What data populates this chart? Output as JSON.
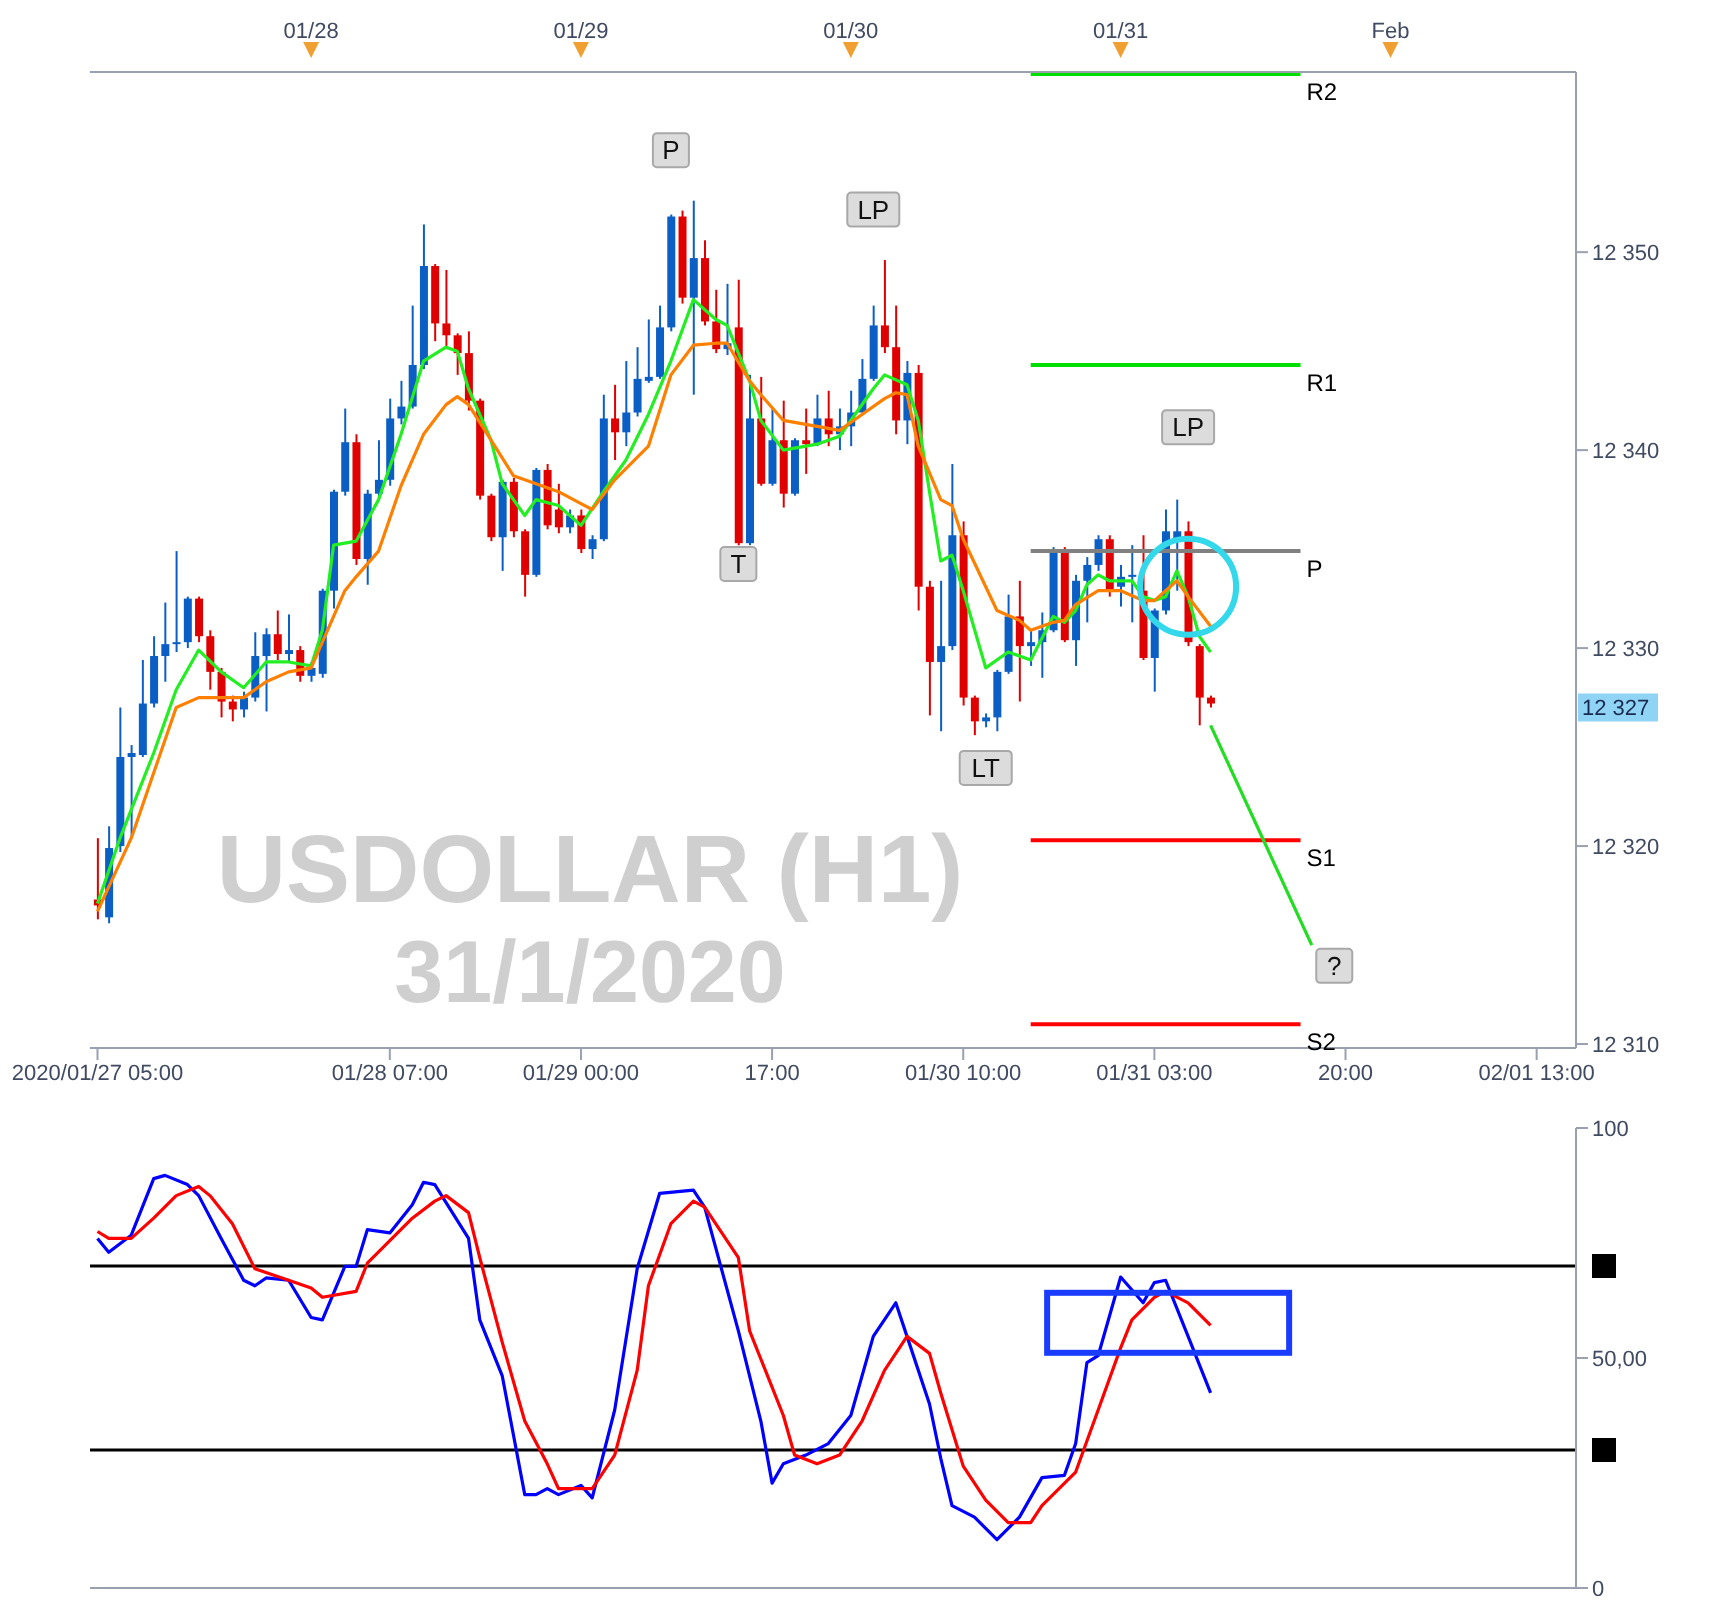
{
  "chart_data": [
    {
      "type": "candlestick",
      "title": "USDOLLAR (H1)",
      "subtitle": "31/1/2020",
      "x": [
        "2020-01-27T05:00",
        "2020-01-27T06:00",
        "2020-01-27T07:00",
        "2020-01-27T08:00",
        "2020-01-27T09:00",
        "2020-01-27T10:00",
        "2020-01-27T11:00",
        "2020-01-27T12:00",
        "2020-01-27T13:00",
        "2020-01-27T14:00",
        "2020-01-27T15:00",
        "2020-01-27T16:00",
        "2020-01-27T17:00",
        "2020-01-27T18:00",
        "2020-01-27T19:00",
        "2020-01-27T20:00",
        "2020-01-27T21:00",
        "2020-01-27T22:00",
        "2020-01-27T23:00",
        "2020-01-28T00:00",
        "2020-01-28T01:00",
        "2020-01-28T02:00",
        "2020-01-28T03:00",
        "2020-01-28T04:00",
        "2020-01-28T05:00",
        "2020-01-28T06:00",
        "2020-01-28T07:00",
        "2020-01-28T08:00",
        "2020-01-28T09:00",
        "2020-01-28T10:00",
        "2020-01-28T11:00",
        "2020-01-28T12:00",
        "2020-01-28T13:00",
        "2020-01-28T14:00",
        "2020-01-28T15:00",
        "2020-01-28T16:00",
        "2020-01-28T17:00",
        "2020-01-28T18:00",
        "2020-01-28T19:00",
        "2020-01-28T20:00",
        "2020-01-28T21:00",
        "2020-01-28T22:00",
        "2020-01-28T23:00",
        "2020-01-29T00:00",
        "2020-01-29T01:00",
        "2020-01-29T02:00",
        "2020-01-29T03:00",
        "2020-01-29T04:00",
        "2020-01-29T05:00",
        "2020-01-29T06:00",
        "2020-01-29T07:00",
        "2020-01-29T08:00",
        "2020-01-29T09:00",
        "2020-01-29T10:00",
        "2020-01-29T11:00",
        "2020-01-29T12:00",
        "2020-01-29T13:00",
        "2020-01-29T14:00",
        "2020-01-29T15:00",
        "2020-01-29T16:00",
        "2020-01-29T17:00",
        "2020-01-29T18:00",
        "2020-01-29T19:00",
        "2020-01-29T20:00",
        "2020-01-29T21:00",
        "2020-01-29T22:00",
        "2020-01-29T23:00",
        "2020-01-30T00:00",
        "2020-01-30T01:00",
        "2020-01-30T02:00",
        "2020-01-30T03:00",
        "2020-01-30T04:00",
        "2020-01-30T05:00",
        "2020-01-30T06:00",
        "2020-01-30T07:00",
        "2020-01-30T08:00",
        "2020-01-30T09:00",
        "2020-01-30T10:00",
        "2020-01-30T11:00",
        "2020-01-30T12:00",
        "2020-01-30T13:00",
        "2020-01-30T14:00",
        "2020-01-30T15:00",
        "2020-01-30T16:00",
        "2020-01-30T17:00",
        "2020-01-30T18:00",
        "2020-01-30T19:00",
        "2020-01-30T20:00",
        "2020-01-30T21:00",
        "2020-01-30T22:00",
        "2020-01-30T23:00",
        "2020-01-31T00:00",
        "2020-01-31T01:00",
        "2020-01-31T02:00",
        "2020-01-31T03:00",
        "2020-01-31T04:00",
        "2020-01-31T05:00",
        "2020-01-31T06:00",
        "2020-01-31T07:00",
        "2020-01-31T08:00"
      ],
      "ohlc": [
        [
          12317.3,
          12320.4,
          12316.3,
          12317.0
        ],
        [
          12316.4,
          12321.0,
          12316.1,
          12319.9
        ],
        [
          12320.0,
          12327.0,
          12319.7,
          12324.5
        ],
        [
          12324.5,
          12325.1,
          12320.4,
          12324.7
        ],
        [
          12324.6,
          12329.4,
          12324.5,
          12327.2
        ],
        [
          12327.2,
          12330.6,
          12327.0,
          12329.6
        ],
        [
          12329.6,
          12332.3,
          12328.3,
          12330.2
        ],
        [
          12330.2,
          12334.9,
          12329.8,
          12330.3
        ],
        [
          12330.3,
          12332.6,
          12330.0,
          12332.5
        ],
        [
          12332.5,
          12332.6,
          12330.3,
          12330.6
        ],
        [
          12330.6,
          12330.9,
          12327.9,
          12328.8
        ],
        [
          12328.8,
          12329.0,
          12326.5,
          12327.3
        ],
        [
          12327.3,
          12327.6,
          12326.3,
          12326.9
        ],
        [
          12326.9,
          12327.8,
          12326.5,
          12327.5
        ],
        [
          12327.5,
          12330.8,
          12327.3,
          12329.6
        ],
        [
          12329.6,
          12331.0,
          12326.8,
          12330.7
        ],
        [
          12330.7,
          12331.9,
          12329.4,
          12329.7
        ],
        [
          12329.7,
          12331.7,
          12329.3,
          12329.9
        ],
        [
          12329.9,
          12330.1,
          12328.3,
          12328.6
        ],
        [
          12328.6,
          12329.3,
          12328.3,
          12329.0
        ],
        [
          12328.7,
          12333.0,
          12328.5,
          12332.9
        ],
        [
          12332.9,
          12338.0,
          12332.0,
          12337.9
        ],
        [
          12337.9,
          12342.1,
          12337.7,
          12340.4
        ],
        [
          12340.4,
          12340.8,
          12334.2,
          12334.5
        ],
        [
          12334.5,
          12338.0,
          12333.2,
          12337.8
        ],
        [
          12337.8,
          12340.5,
          12337.5,
          12338.5
        ],
        [
          12338.5,
          12342.6,
          12338.2,
          12341.6
        ],
        [
          12341.6,
          12343.5,
          12341.3,
          12342.2
        ],
        [
          12342.2,
          12347.3,
          12342.1,
          12344.3
        ],
        [
          12344.3,
          12351.4,
          12344.1,
          12349.3
        ],
        [
          12349.3,
          12349.4,
          12345.5,
          12346.4
        ],
        [
          12346.4,
          12349.1,
          12345.1,
          12345.8
        ],
        [
          12345.8,
          12345.9,
          12343.8,
          12344.9
        ],
        [
          12344.9,
          12346.0,
          12342.0,
          12342.5
        ],
        [
          12342.5,
          12342.6,
          12337.5,
          12337.7
        ],
        [
          12337.7,
          12337.8,
          12335.4,
          12335.6
        ],
        [
          12335.6,
          12338.5,
          12333.9,
          12338.4
        ],
        [
          12338.4,
          12338.6,
          12335.6,
          12335.9
        ],
        [
          12335.9,
          12336.0,
          12332.6,
          12333.7
        ],
        [
          12333.7,
          12339.1,
          12333.6,
          12339.0
        ],
        [
          12339.0,
          12339.3,
          12336.0,
          12336.2
        ],
        [
          12337.0,
          12338.3,
          12335.8,
          12336.1
        ],
        [
          12336.1,
          12337.0,
          12335.8,
          12336.7
        ],
        [
          12336.7,
          12337.0,
          12334.8,
          12335.0
        ],
        [
          12335.0,
          12335.7,
          12334.5,
          12335.5
        ],
        [
          12335.5,
          12342.8,
          12335.4,
          12341.6
        ],
        [
          12341.6,
          12343.3,
          12339.5,
          12340.9
        ],
        [
          12340.9,
          12344.5,
          12340.2,
          12341.9
        ],
        [
          12341.9,
          12345.2,
          12341.7,
          12343.6
        ],
        [
          12343.5,
          12346.6,
          12343.4,
          12343.7
        ],
        [
          12343.7,
          12347.3,
          12343.6,
          12346.2
        ],
        [
          12346.2,
          12351.9,
          12346.0,
          12351.8
        ],
        [
          12351.8,
          12352.1,
          12347.4,
          12347.7
        ],
        [
          12347.7,
          12352.6,
          12342.8,
          12349.7
        ],
        [
          12349.7,
          12350.6,
          12346.3,
          12346.5
        ],
        [
          12346.5,
          12348.1,
          12344.9,
          12345.1
        ],
        [
          12345.1,
          12348.4,
          12344.8,
          12345.4
        ],
        [
          12346.2,
          12348.6,
          12335.2,
          12335.3
        ],
        [
          12335.3,
          12343.8,
          12335.2,
          12341.6
        ],
        [
          12341.6,
          12343.7,
          12338.2,
          12338.3
        ],
        [
          12338.3,
          12342.1,
          12338.2,
          12340.5
        ],
        [
          12340.5,
          12342.5,
          12337.1,
          12337.8
        ],
        [
          12337.8,
          12340.6,
          12337.7,
          12340.5
        ],
        [
          12340.5,
          12342.1,
          12338.8,
          12340.3
        ],
        [
          12340.3,
          12342.8,
          12340.2,
          12341.6
        ],
        [
          12341.6,
          12343.0,
          12340.2,
          12340.8
        ],
        [
          12340.8,
          12342.1,
          12340.0,
          12341.2
        ],
        [
          12341.2,
          12343.0,
          12340.2,
          12341.9
        ],
        [
          12341.9,
          12344.6,
          12341.9,
          12343.6
        ],
        [
          12343.6,
          12347.3,
          12343.5,
          12346.3
        ],
        [
          12346.3,
          12349.6,
          12344.9,
          12345.2
        ],
        [
          12345.2,
          12347.3,
          12340.8,
          12341.5
        ],
        [
          12341.5,
          12344.5,
          12340.3,
          12343.9
        ],
        [
          12343.9,
          12344.3,
          12331.9,
          12333.1
        ],
        [
          12333.1,
          12333.4,
          12326.6,
          12329.3
        ],
        [
          12329.3,
          12333.4,
          12325.8,
          12330.1
        ],
        [
          12330.1,
          12339.3,
          12329.9,
          12335.7
        ],
        [
          12335.7,
          12336.4,
          12327.1,
          12327.5
        ],
        [
          12327.5,
          12327.6,
          12325.6,
          12326.3
        ],
        [
          12326.3,
          12326.7,
          12326.0,
          12326.5
        ],
        [
          12326.5,
          12328.9,
          12325.8,
          12328.8
        ],
        [
          12328.8,
          12332.7,
          12328.7,
          12331.6
        ],
        [
          12331.6,
          12333.4,
          12327.3,
          12330.1
        ],
        [
          12330.1,
          12330.9,
          12329.1,
          12330.3
        ],
        [
          12330.3,
          12331.8,
          12328.5,
          12330.9
        ],
        [
          12330.9,
          12335.1,
          12330.8,
          12334.9
        ],
        [
          12334.9,
          12335.1,
          12330.3,
          12330.4
        ],
        [
          12330.4,
          12333.7,
          12329.1,
          12333.4
        ],
        [
          12333.4,
          12334.6,
          12331.3,
          12334.2
        ],
        [
          12334.2,
          12335.7,
          12333.9,
          12335.5
        ],
        [
          12335.5,
          12335.7,
          12332.6,
          12332.9
        ],
        [
          12333.1,
          12334.2,
          12332.1,
          12333.6
        ],
        [
          12333.6,
          12335.2,
          12331.3,
          12333.7
        ],
        [
          12332.9,
          12335.7,
          12329.4,
          12329.5
        ],
        [
          12329.5,
          12332.0,
          12327.8,
          12331.9
        ],
        [
          12331.9,
          12337.0,
          12331.7,
          12335.9
        ],
        [
          12335.4,
          12337.5,
          12332.9,
          12335.9
        ],
        [
          12335.9,
          12336.4,
          12330.1,
          12330.3
        ],
        [
          12330.1,
          12330.2,
          12326.1,
          12327.5
        ],
        [
          12327.5,
          12327.6,
          12327.0,
          12327.2
        ]
      ],
      "colors": [
        "#e00000",
        "#0b5fc4",
        "#0b5fc4",
        "#0b5fc4",
        "#0b5fc4",
        "#0b5fc4",
        "#0b5fc4",
        "#0b5fc4",
        "#0b5fc4",
        "#e00000",
        "#e00000",
        "#e00000",
        "#e00000",
        "#0b5fc4",
        "#0b5fc4",
        "#0b5fc4",
        "#e00000",
        "#0b5fc4",
        "#e00000",
        "#0b5fc4",
        "#0b5fc4",
        "#0b5fc4",
        "#0b5fc4",
        "#e00000",
        "#0b5fc4",
        "#0b5fc4",
        "#0b5fc4",
        "#0b5fc4",
        "#0b5fc4",
        "#0b5fc4",
        "#e00000",
        "#e00000",
        "#e00000",
        "#e00000",
        "#e00000",
        "#e00000",
        "#0b5fc4",
        "#e00000",
        "#e00000",
        "#0b5fc4",
        "#e00000",
        "#e00000",
        "#0b5fc4",
        "#e00000",
        "#0b5fc4",
        "#0b5fc4",
        "#e00000",
        "#0b5fc4",
        "#0b5fc4",
        "#0b5fc4",
        "#0b5fc4",
        "#0b5fc4",
        "#e00000",
        "#0b5fc4",
        "#e00000",
        "#e00000",
        "#0b5fc4",
        "#e00000",
        "#0b5fc4",
        "#e00000",
        "#0b5fc4",
        "#e00000",
        "#0b5fc4",
        "#e00000",
        "#0b5fc4",
        "#e00000",
        "#0b5fc4",
        "#0b5fc4",
        "#0b5fc4",
        "#0b5fc4",
        "#e00000",
        "#e00000",
        "#0b5fc4",
        "#e00000",
        "#e00000",
        "#0b5fc4",
        "#0b5fc4",
        "#e00000",
        "#e00000",
        "#0b5fc4",
        "#0b5fc4",
        "#0b5fc4",
        "#e00000",
        "#0b5fc4",
        "#0b5fc4",
        "#0b5fc4",
        "#e00000",
        "#0b5fc4",
        "#0b5fc4",
        "#0b5fc4",
        "#e00000",
        "#0b5fc4",
        "#0b5fc4",
        "#e00000",
        "#0b5fc4",
        "#0b5fc4",
        "#0b5fc4",
        "#e00000",
        "#e00000",
        "#e00000"
      ],
      "series": [
        {
          "type": "line",
          "color": "#22ee22",
          "x": [
            "2020-01-27T05:00",
            "2020-01-27T07:00",
            "2020-01-27T10:00",
            "2020-01-27T12:00",
            "2020-01-27T14:00",
            "2020-01-27T16:00",
            "2020-01-27T18:00",
            "2020-01-27T20:00",
            "2020-01-27T22:00",
            "2020-01-28T00:00",
            "2020-01-28T01:00",
            "2020-01-28T02:00",
            "2020-01-28T04:00",
            "2020-01-28T06:00",
            "2020-01-28T08:00",
            "2020-01-28T10:00",
            "2020-01-28T12:00",
            "2020-01-28T13:00",
            "2020-01-28T14:00",
            "2020-01-28T16:00",
            "2020-01-28T17:00",
            "2020-01-28T19:00",
            "2020-01-28T20:00",
            "2020-01-28T22:00",
            "2020-01-29T00:00",
            "2020-01-29T02:00",
            "2020-01-29T04:00",
            "2020-01-29T06:00",
            "2020-01-29T08:00",
            "2020-01-29T10:00",
            "2020-01-29T12:00",
            "2020-01-29T13:00",
            "2020-01-29T15:00",
            "2020-01-29T16:00",
            "2020-01-29T18:00",
            "2020-01-29T21:00",
            "2020-01-29T23:00",
            "2020-01-30T02:00",
            "2020-01-30T03:00",
            "2020-01-30T05:00",
            "2020-01-30T06:00",
            "2020-01-30T07:00",
            "2020-01-30T08:00",
            "2020-01-30T09:00",
            "2020-01-30T10:00",
            "2020-01-30T12:00",
            "2020-01-30T14:00",
            "2020-01-30T16:00",
            "2020-01-30T18:00",
            "2020-01-30T19:00",
            "2020-01-30T20:00",
            "2020-01-30T21:00",
            "2020-01-30T22:00",
            "2020-01-30T23:00",
            "2020-01-31T01:00",
            "2020-01-31T02:00",
            "2020-01-31T03:00",
            "2020-01-31T04:00",
            "2020-01-31T05:00",
            "2020-01-31T06:00",
            "2020-01-31T07:00",
            "2020-01-31T08:00"
          ],
          "values": [
            12317.1,
            12320.4,
            12324.7,
            12327.9,
            12329.9,
            12328.8,
            12328.0,
            12329.3,
            12329.3,
            12329.1,
            12330.9,
            12335.2,
            12335.4,
            12337.5,
            12340.8,
            12344.5,
            12345.2,
            12345.0,
            12343.1,
            12340.5,
            12338.3,
            12336.7,
            12337.5,
            12337.2,
            12336.2,
            12337.9,
            12339.5,
            12341.8,
            12344.5,
            12347.6,
            12346.6,
            12346.3,
            12343.5,
            12341.5,
            12340.0,
            12340.3,
            12340.7,
            12343.1,
            12343.8,
            12343.3,
            12341.5,
            12337.9,
            12334.4,
            12334.7,
            12332.9,
            12329.0,
            12329.8,
            12329.4,
            12331.6,
            12331.3,
            12331.9,
            12333.2,
            12333.7,
            12333.4,
            12333.4,
            12332.6,
            12332.4,
            12332.6,
            12333.9,
            12332.6,
            12330.6,
            12329.8
          ]
        },
        {
          "type": "line",
          "color": "#ff8000",
          "x": [
            "2020-01-27T05:00",
            "2020-01-27T08:00",
            "2020-01-27T10:00",
            "2020-01-27T12:00",
            "2020-01-27T14:00",
            "2020-01-27T18:00",
            "2020-01-27T20:00",
            "2020-01-27T22:00",
            "2020-01-28T00:00",
            "2020-01-28T01:00",
            "2020-01-28T03:00",
            "2020-01-28T04:00",
            "2020-01-28T06:00",
            "2020-01-28T08:00",
            "2020-01-28T10:00",
            "2020-01-28T12:00",
            "2020-01-28T13:00",
            "2020-01-28T14:00",
            "2020-01-28T16:00",
            "2020-01-28T18:00",
            "2020-01-28T20:00",
            "2020-01-28T22:00",
            "2020-01-29T00:00",
            "2020-01-29T01:00",
            "2020-01-29T03:00",
            "2020-01-29T06:00",
            "2020-01-29T08:00",
            "2020-01-29T10:00",
            "2020-01-29T12:00",
            "2020-01-29T13:00",
            "2020-01-29T15:00",
            "2020-01-29T16:00",
            "2020-01-29T18:00",
            "2020-01-29T21:00",
            "2020-01-29T23:00",
            "2020-01-30T01:00",
            "2020-01-30T03:00",
            "2020-01-30T04:00",
            "2020-01-30T05:00",
            "2020-01-30T06:00",
            "2020-01-30T08:00",
            "2020-01-30T09:00",
            "2020-01-30T10:00",
            "2020-01-30T13:00",
            "2020-01-30T15:00",
            "2020-01-30T16:00",
            "2020-01-30T18:00",
            "2020-01-30T19:00",
            "2020-01-30T20:00",
            "2020-01-30T22:00",
            "2020-01-31T00:00",
            "2020-01-31T02:00",
            "2020-01-31T03:00",
            "2020-01-31T05:00",
            "2020-01-31T06:00",
            "2020-01-31T08:00"
          ],
          "values": [
            12316.7,
            12320.4,
            12323.7,
            12327.0,
            12327.5,
            12327.5,
            12328.3,
            12328.8,
            12329.0,
            12330.3,
            12332.9,
            12333.6,
            12334.9,
            12338.2,
            12340.8,
            12342.3,
            12342.7,
            12342.3,
            12340.5,
            12338.7,
            12338.3,
            12337.9,
            12337.3,
            12337.0,
            12338.5,
            12340.2,
            12343.8,
            12345.3,
            12345.4,
            12345.4,
            12343.5,
            12342.8,
            12341.5,
            12341.2,
            12341.0,
            12341.8,
            12342.6,
            12342.9,
            12342.8,
            12340.2,
            12337.5,
            12337.2,
            12335.5,
            12331.9,
            12331.4,
            12330.9,
            12331.3,
            12331.4,
            12332.2,
            12332.9,
            12332.9,
            12332.4,
            12332.4,
            12333.4,
            12332.6,
            12331.1
          ]
        },
        {
          "type": "line",
          "name": "R2",
          "color": "#00e000",
          "x": [
            "2020-01-30T16:00",
            "2020-01-31T16:00"
          ],
          "values": [
            12359.0,
            12359.0
          ]
        },
        {
          "type": "line",
          "name": "R1",
          "color": "#00e000",
          "x": [
            "2020-01-30T16:00",
            "2020-01-31T16:00"
          ],
          "values": [
            12344.3,
            12344.3
          ]
        },
        {
          "type": "line",
          "name": "P",
          "color": "#808080",
          "x": [
            "2020-01-30T16:00",
            "2020-01-31T16:00"
          ],
          "values": [
            12334.9,
            12334.9
          ]
        },
        {
          "type": "line",
          "name": "S1",
          "color": "#ff0000",
          "x": [
            "2020-01-30T16:00",
            "2020-01-31T16:00"
          ],
          "values": [
            12320.3,
            12320.3
          ]
        },
        {
          "type": "line",
          "name": "S2",
          "color": "#ff0000",
          "x": [
            "2020-01-30T16:00",
            "2020-01-31T16:00"
          ],
          "values": [
            12311.0,
            12311.0
          ]
        },
        {
          "type": "line",
          "color": "#22dd22",
          "x": [
            "2020-01-31T08:00",
            "2020-01-31T17:00"
          ],
          "values": [
            12326.1,
            12315.0
          ]
        }
      ],
      "xlim": [
        "2020-01-27T04:20",
        "2020-02-01T16:30"
      ],
      "xticks": [
        {
          "value": "2020-01-27T05:00",
          "label": "2020/01/27 05:00"
        },
        {
          "value": "2020-01-28T07:00",
          "label": "01/28 07:00"
        },
        {
          "value": "2020-01-29T00:00",
          "label": "01/29 00:00"
        },
        {
          "value": "2020-01-29T17:00",
          "label": "17:00"
        },
        {
          "value": "2020-01-30T10:00",
          "label": "01/30 10:00"
        },
        {
          "value": "2020-01-31T03:00",
          "label": "01/31 03:00"
        },
        {
          "value": "2020-01-31T20:00",
          "label": "20:00"
        },
        {
          "value": "2020-02-01T13:00",
          "label": "02/01 13:00"
        }
      ],
      "x2lim": [
        "2020-01-27T04:20",
        "2020-02-01T16:30"
      ],
      "x2ticks": [
        {
          "value": "2020-01-28T00:00",
          "label": "01/28"
        },
        {
          "value": "2020-01-29T00:00",
          "label": "01/29"
        },
        {
          "value": "2020-01-30T00:00",
          "label": "01/30"
        },
        {
          "value": "2020-01-31T00:00",
          "label": "01/31"
        },
        {
          "value": "2020-02-01T00:00",
          "label": "Feb"
        }
      ],
      "ylim": [
        12309.8,
        12359.1
      ],
      "yticks": [
        {
          "value": 12310,
          "label": "12 310"
        },
        {
          "value": 12320,
          "label": "12 320"
        },
        {
          "value": 12330,
          "label": "12 330"
        },
        {
          "value": 12340,
          "label": "12 340"
        },
        {
          "value": 12350,
          "label": "12 350"
        }
      ],
      "annotations": [
        {
          "text": "P",
          "x": "2020-01-29T08:00",
          "y": 12355.2
        },
        {
          "text": "T",
          "x": "2020-01-29T14:00",
          "y": 12334.3
        },
        {
          "text": "LP",
          "x": "2020-01-30T02:00",
          "y": 12352.2
        },
        {
          "text": "LT",
          "x": "2020-01-30T12:00",
          "y": 12324.0
        },
        {
          "text": "LP",
          "x": "2020-01-31T06:00",
          "y": 12341.2
        },
        {
          "text": "?",
          "x": "2020-01-31T19:00",
          "y": 12314.0
        },
        {
          "text": "12 327",
          "y": 12327
        }
      ]
    },
    {
      "type": "line",
      "tick_labels": "y",
      "series": [
        {
          "color": "#0000ff",
          "x": [
            "2020-01-27T05:00",
            "2020-01-27T06:00",
            "2020-01-27T08:00",
            "2020-01-27T10:00",
            "2020-01-27T11:00",
            "2020-01-27T13:00",
            "2020-01-27T14:00",
            "2020-01-27T16:00",
            "2020-01-27T18:00",
            "2020-01-27T19:00",
            "2020-01-27T20:00",
            "2020-01-27T22:00",
            "2020-01-28T00:00",
            "2020-01-28T01:00",
            "2020-01-28T03:00",
            "2020-01-28T04:00",
            "2020-01-28T05:00",
            "2020-01-28T07:00",
            "2020-01-28T09:00",
            "2020-01-28T10:00",
            "2020-01-28T11:00",
            "2020-01-28T14:00",
            "2020-01-28T15:00",
            "2020-01-28T17:00",
            "2020-01-28T19:00",
            "2020-01-28T20:00",
            "2020-01-28T21:00",
            "2020-01-28T22:00",
            "2020-01-29T00:00",
            "2020-01-29T01:00",
            "2020-01-29T03:00",
            "2020-01-29T05:00",
            "2020-01-29T07:00",
            "2020-01-29T10:00",
            "2020-01-29T11:00",
            "2020-01-29T14:00",
            "2020-01-29T16:00",
            "2020-01-29T17:00",
            "2020-01-29T18:00",
            "2020-01-29T20:00",
            "2020-01-29T22:00",
            "2020-01-30T00:00",
            "2020-01-30T02:00",
            "2020-01-30T04:00",
            "2020-01-30T05:00",
            "2020-01-30T07:00",
            "2020-01-30T08:00",
            "2020-01-30T09:00",
            "2020-01-30T11:00",
            "2020-01-30T13:00",
            "2020-01-30T15:00",
            "2020-01-30T17:00",
            "2020-01-30T19:00",
            "2020-01-30T20:00",
            "2020-01-30T21:00",
            "2020-01-30T22:00",
            "2020-01-31T00:00",
            "2020-01-31T02:00",
            "2020-01-31T03:00",
            "2020-01-31T04:00",
            "2020-01-31T06:00",
            "2020-01-31T08:00"
          ],
          "values": [
            76.0,
            73.0,
            76.7,
            89.0,
            89.7,
            87.7,
            85.3,
            76.0,
            66.9,
            65.7,
            67.4,
            66.9,
            58.8,
            58.3,
            69.9,
            69.9,
            77.9,
            77.2,
            83.3,
            88.2,
            87.7,
            76.0,
            58.3,
            46.1,
            20.3,
            20.3,
            21.6,
            20.3,
            22.3,
            19.6,
            38.7,
            69.4,
            85.8,
            86.5,
            82.8,
            55.9,
            36.3,
            22.8,
            27.0,
            28.9,
            31.4,
            37.5,
            54.7,
            62.0,
            54.7,
            40.0,
            28.2,
            17.9,
            15.4,
            10.5,
            15.4,
            24.0,
            24.5,
            31.4,
            49.0,
            50.5,
            67.6,
            62.0,
            66.4,
            66.9,
            54.7,
            42.4
          ]
        },
        {
          "color": "#ff0000",
          "x": [
            "2020-01-27T05:00",
            "2020-01-27T06:00",
            "2020-01-27T08:00",
            "2020-01-27T10:00",
            "2020-01-27T12:00",
            "2020-01-27T14:00",
            "2020-01-27T15:00",
            "2020-01-27T17:00",
            "2020-01-27T19:00",
            "2020-01-27T22:00",
            "2020-01-28T00:00",
            "2020-01-28T01:00",
            "2020-01-28T04:00",
            "2020-01-28T05:00",
            "2020-01-28T07:00",
            "2020-01-28T09:00",
            "2020-01-28T11:00",
            "2020-01-28T12:00",
            "2020-01-28T14:00",
            "2020-01-28T15:00",
            "2020-01-28T17:00",
            "2020-01-28T19:00",
            "2020-01-28T21:00",
            "2020-01-28T22:00",
            "2020-01-29T01:00",
            "2020-01-29T03:00",
            "2020-01-29T05:00",
            "2020-01-29T06:00",
            "2020-01-29T08:00",
            "2020-01-29T10:00",
            "2020-01-29T11:00",
            "2020-01-29T14:00",
            "2020-01-29T15:00",
            "2020-01-29T18:00",
            "2020-01-29T19:00",
            "2020-01-29T21:00",
            "2020-01-29T23:00",
            "2020-01-30T01:00",
            "2020-01-30T03:00",
            "2020-01-30T05:00",
            "2020-01-30T07:00",
            "2020-01-30T08:00",
            "2020-01-30T10:00",
            "2020-01-30T12:00",
            "2020-01-30T14:00",
            "2020-01-30T16:00",
            "2020-01-30T17:00",
            "2020-01-30T20:00",
            "2020-01-30T22:00",
            "2020-01-31T00:00",
            "2020-01-31T01:00",
            "2020-01-31T03:00",
            "2020-01-31T04:00",
            "2020-01-31T06:00",
            "2020-01-31T08:00"
          ],
          "values": [
            77.5,
            76.0,
            76.0,
            80.4,
            85.3,
            87.3,
            85.3,
            79.2,
            69.4,
            66.9,
            65.2,
            63.2,
            64.5,
            70.6,
            75.5,
            80.4,
            84.1,
            85.3,
            81.6,
            71.8,
            53.4,
            36.3,
            27.0,
            21.6,
            21.6,
            28.9,
            47.3,
            65.7,
            79.2,
            84.1,
            82.8,
            71.8,
            55.9,
            37.5,
            28.9,
            27.0,
            28.9,
            36.3,
            47.3,
            54.7,
            51.0,
            42.4,
            26.5,
            19.1,
            14.2,
            14.2,
            17.9,
            25.2,
            38.7,
            52.2,
            58.3,
            63.2,
            64.5,
            62.0,
            57.1
          ]
        }
      ],
      "xlim": [
        "2020-01-27T04:20",
        "2020-02-01T16:30"
      ],
      "ylim": [
        0,
        100
      ],
      "yticks": [
        0,
        {
          "value": 50,
          "label": "50,00"
        },
        100
      ],
      "ref_lines": [
        {
          "axis": "y",
          "value": 70,
          "color": "#000000"
        },
        {
          "axis": "y",
          "value": 30,
          "color": "#000000"
        }
      ]
    }
  ]
}
